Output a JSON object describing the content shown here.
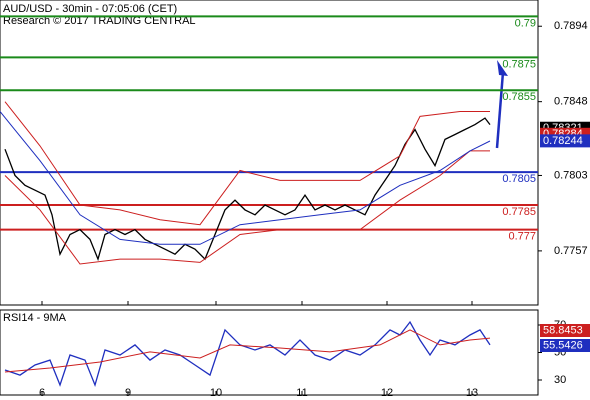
{
  "chart_data": [
    {
      "type": "line",
      "title": "AUD/USD - 30min - 07:05:06 (CET)",
      "subtitle": "Research © 2017 TRADING CENTRAL",
      "xlim": [
        0,
        538
      ],
      "xticks": [
        {
          "value": 42,
          "label": "6"
        },
        {
          "value": 128,
          "label": "9"
        },
        {
          "value": 216,
          "label": "10"
        },
        {
          "value": 302,
          "label": "11"
        },
        {
          "value": 387,
          "label": "12"
        },
        {
          "value": 472,
          "label": "13"
        }
      ],
      "ylim": [
        0.7724,
        0.791
      ],
      "yticks": [
        0.7757,
        0.7803,
        0.7848,
        0.7894
      ],
      "levels": [
        {
          "value": 0.79,
          "color": "#1a8a1a"
        },
        {
          "value": 0.7875,
          "color": "#1a8a1a"
        },
        {
          "value": 0.7855,
          "color": "#1a8a1a"
        },
        {
          "value": 0.7805,
          "color": "#1f2fbf"
        },
        {
          "value": 0.7785,
          "color": "#cc1f1f"
        },
        {
          "value": 0.777,
          "color": "#cc1f1f"
        }
      ],
      "tags": [
        {
          "value": 0.78321,
          "color": "#000000"
        },
        {
          "value": 0.78284,
          "color": "#cc1f1f"
        },
        {
          "value": 0.78244,
          "color": "#1f2fbf"
        }
      ],
      "series": [
        {
          "name": "Price",
          "color": "#000000",
          "x": [
            5,
            15,
            25,
            35,
            45,
            52,
            60,
            70,
            80,
            90,
            98,
            105,
            115,
            125,
            135,
            145,
            155,
            165,
            175,
            185,
            195,
            205,
            215,
            225,
            235,
            245,
            255,
            265,
            275,
            285,
            295,
            305,
            315,
            325,
            335,
            345,
            355,
            365,
            375,
            385,
            395,
            405,
            415,
            425,
            435,
            445,
            455,
            465,
            475,
            485,
            490
          ],
          "values": [
            0.7819,
            0.7803,
            0.7797,
            0.7794,
            0.7791,
            0.7779,
            0.7755,
            0.7767,
            0.777,
            0.7764,
            0.7752,
            0.7767,
            0.777,
            0.7767,
            0.777,
            0.7764,
            0.7761,
            0.7758,
            0.7755,
            0.7761,
            0.7758,
            0.7752,
            0.7767,
            0.7782,
            0.7788,
            0.7782,
            0.7779,
            0.7785,
            0.7782,
            0.7779,
            0.7782,
            0.7791,
            0.7782,
            0.7785,
            0.7782,
            0.7785,
            0.7782,
            0.7779,
            0.7791,
            0.78,
            0.7809,
            0.7822,
            0.7831,
            0.7819,
            0.7809,
            0.7825,
            0.7828,
            0.7831,
            0.7834,
            0.7838,
            0.7834
          ]
        },
        {
          "name": "Upper band",
          "color": "#cc1f1f",
          "x": [
            5,
            40,
            80,
            120,
            160,
            200,
            240,
            280,
            320,
            360,
            400,
            420,
            460,
            490
          ],
          "values": [
            0.7848,
            0.7821,
            0.7785,
            0.7782,
            0.7776,
            0.7773,
            0.7806,
            0.78,
            0.78,
            0.78,
            0.7815,
            0.7839,
            0.7842,
            0.7842
          ]
        },
        {
          "name": "Lower band",
          "color": "#cc1f1f",
          "x": [
            5,
            40,
            80,
            120,
            160,
            200,
            240,
            280,
            320,
            360,
            400,
            440,
            470,
            490
          ],
          "values": [
            0.7803,
            0.7782,
            0.7749,
            0.7752,
            0.7752,
            0.775,
            0.7767,
            0.777,
            0.777,
            0.777,
            0.7788,
            0.7803,
            0.7818,
            0.7818
          ]
        },
        {
          "name": "Moving average",
          "color": "#1f2fbf",
          "x": [
            0,
            40,
            80,
            120,
            160,
            200,
            240,
            280,
            320,
            360,
            400,
            440,
            470,
            490
          ],
          "values": [
            0.7842,
            0.7812,
            0.7779,
            0.7764,
            0.7761,
            0.7761,
            0.7773,
            0.7776,
            0.7779,
            0.7782,
            0.7797,
            0.7806,
            0.7818,
            0.7824
          ]
        }
      ]
    },
    {
      "type": "line",
      "title": "RSI14 - 9MA",
      "ylim": [
        19.1,
        80.9
      ],
      "yticks": [
        30,
        50,
        70
      ],
      "tags": [
        {
          "value": 58.8453,
          "color": "#cc1f1f"
        },
        {
          "value": 55.5426,
          "color": "#1f2fbf"
        }
      ],
      "series": [
        {
          "name": "RSI",
          "color": "#1f2fbf",
          "x": [
            5,
            20,
            35,
            50,
            60,
            70,
            85,
            95,
            105,
            120,
            135,
            150,
            165,
            180,
            195,
            210,
            225,
            240,
            255,
            270,
            285,
            300,
            315,
            330,
            345,
            360,
            375,
            390,
            400,
            410,
            420,
            430,
            440,
            455,
            470,
            480,
            490
          ],
          "values": [
            37.3,
            33.6,
            40.9,
            44.5,
            26.4,
            48.2,
            44.5,
            26.4,
            51.8,
            48.2,
            55.5,
            44.5,
            51.8,
            48.2,
            40.9,
            33.6,
            66.4,
            55.5,
            51.8,
            55.5,
            48.2,
            59.1,
            48.2,
            44.5,
            51.8,
            48.2,
            55.5,
            66.4,
            62.7,
            72.2,
            59.1,
            48.2,
            59.1,
            55.5,
            62.7,
            66.4,
            55.5
          ]
        },
        {
          "name": "RSI MA",
          "color": "#cc1f1f",
          "x": [
            5,
            50,
            100,
            150,
            200,
            230,
            280,
            330,
            380,
            410,
            440,
            470,
            490
          ],
          "values": [
            35.8,
            38.7,
            43.1,
            50.4,
            46,
            55.5,
            53.3,
            50.4,
            55.5,
            66.4,
            55.5,
            59.1,
            60.5
          ]
        }
      ]
    }
  ]
}
